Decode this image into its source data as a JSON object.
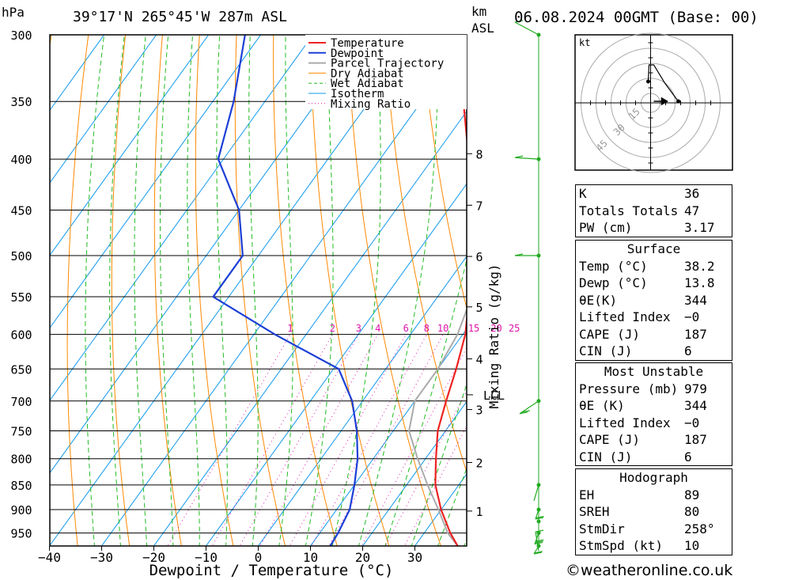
{
  "header": {
    "left_unit": "hPa",
    "location": "39°17'N 265°45'W 287m ASL",
    "km_label": "km",
    "asl_label": "ASL",
    "datetime": "06.08.2024 00GMT (Base: 00)"
  },
  "footer": "©weatheronline.co.uk",
  "colors": {
    "temperature": "#ee2222",
    "dewpoint": "#1c3fd6",
    "parcel": "#aaaaaa",
    "dry_adiabat": "#ff8800",
    "wet_adiabat": "#22bb22",
    "isotherm": "#1199ee",
    "mixing_ratio": "#dd11aa"
  },
  "chart_data": {
    "type": "line",
    "subtype": "skew-T log-P diagram",
    "xlabel": "Dewpoint / Temperature (°C)",
    "ylabel": "hPa",
    "xlim": [
      -40,
      40
    ],
    "ylim": [
      1000,
      300
    ],
    "y_scale": "log",
    "x_ticks": [
      -40,
      -30,
      -20,
      -10,
      0,
      10,
      20,
      30
    ],
    "x_tick_labels": [
      "−40",
      "−30",
      "−20",
      "−10",
      "0",
      "10",
      "20",
      "30"
    ],
    "pressure_levels": [
      300,
      350,
      400,
      450,
      500,
      550,
      600,
      650,
      700,
      750,
      800,
      850,
      900,
      950
    ],
    "right_axis_label": "Mixing Ratio (g/kg)",
    "km_ticks": [
      "1",
      "2",
      "3",
      "4",
      "5",
      "6",
      "7",
      "8"
    ],
    "lcl_label": "LCL",
    "mixing_ratio_labels": [
      "1",
      "2",
      "3",
      "4",
      "6",
      "8",
      "10",
      "15",
      "20",
      "25"
    ],
    "legend": [
      "Temperature",
      "Dewpoint",
      "Parcel Trajectory",
      "Dry Adiabat",
      "Wet Adiabat",
      "Isotherm",
      "Mixing Ratio"
    ],
    "legend_position": "top-right",
    "series": [
      {
        "name": "Temperature",
        "points": [
          [
            979,
            38.2
          ],
          [
            950,
            35
          ],
          [
            900,
            30
          ],
          [
            850,
            25.5
          ],
          [
            800,
            22
          ],
          [
            750,
            18.5
          ],
          [
            700,
            16
          ],
          [
            650,
            13.5
          ],
          [
            600,
            10.5
          ],
          [
            550,
            6
          ],
          [
            500,
            1
          ],
          [
            450,
            -5.5
          ],
          [
            400,
            -13
          ],
          [
            350,
            -22
          ],
          [
            300,
            -33
          ]
        ]
      },
      {
        "name": "Dewpoint",
        "points": [
          [
            979,
            13.8
          ],
          [
            950,
            13.5
          ],
          [
            900,
            12.5
          ],
          [
            850,
            10
          ],
          [
            800,
            7
          ],
          [
            750,
            3
          ],
          [
            700,
            -2
          ],
          [
            650,
            -9
          ],
          [
            600,
            -26
          ],
          [
            550,
            -43
          ],
          [
            500,
            -43
          ],
          [
            450,
            -50
          ],
          [
            400,
            -61
          ],
          [
            350,
            -66
          ],
          [
            300,
            -73
          ]
        ]
      },
      {
        "name": "Parcel Trajectory",
        "points": [
          [
            979,
            38.2
          ],
          [
            950,
            34.5
          ],
          [
            900,
            29.5
          ],
          [
            850,
            24
          ],
          [
            800,
            18.5
          ],
          [
            750,
            13
          ],
          [
            700,
            10
          ],
          [
            650,
            10
          ],
          [
            600,
            9
          ],
          [
            550,
            6.5
          ],
          [
            500,
            2.5
          ],
          [
            450,
            -3
          ],
          [
            400,
            -10
          ],
          [
            350,
            -18.5
          ],
          [
            300,
            -30
          ]
        ]
      }
    ],
    "hodograph": {
      "unit_label": "kt",
      "ring_labels": [
        "15",
        "30",
        "45"
      ]
    }
  },
  "indices": {
    "general": [
      {
        "label": "K",
        "value": "36"
      },
      {
        "label": "Totals Totals",
        "value": "47"
      },
      {
        "label": "PW (cm)",
        "value": "3.17"
      }
    ],
    "surface_title": "Surface",
    "surface": [
      {
        "label": "Temp (°C)",
        "value": "38.2"
      },
      {
        "label": "Dewp (°C)",
        "value": "13.8"
      },
      {
        "label": "θE(K)",
        "value": "344"
      },
      {
        "label": "Lifted Index",
        "value": "−0"
      },
      {
        "label": "CAPE (J)",
        "value": "187"
      },
      {
        "label": "CIN (J)",
        "value": "6"
      }
    ],
    "mu_title": "Most Unstable",
    "most_unstable": [
      {
        "label": "Pressure (mb)",
        "value": "979"
      },
      {
        "label": "θE (K)",
        "value": "344"
      },
      {
        "label": "Lifted Index",
        "value": "−0"
      },
      {
        "label": "CAPE (J)",
        "value": "187"
      },
      {
        "label": "CIN (J)",
        "value": "6"
      }
    ],
    "hodo_title": "Hodograph",
    "hodograph": [
      {
        "label": "EH",
        "value": "89"
      },
      {
        "label": "SREH",
        "value": "80"
      },
      {
        "label": "StmDir",
        "value": "258°"
      },
      {
        "label": "StmSpd (kt)",
        "value": "10"
      }
    ]
  }
}
